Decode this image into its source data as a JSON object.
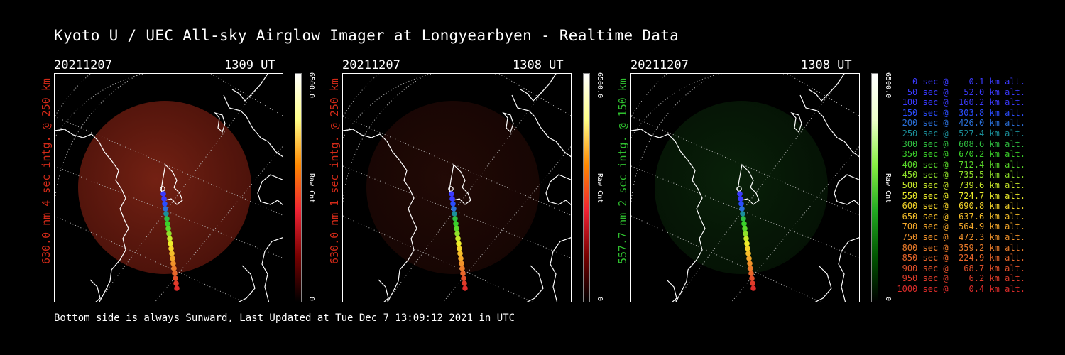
{
  "title": "Kyoto U / UEC All-sky Airglow Imager at Longyearbyen - Realtime Data",
  "footer": "Bottom side is always Sunward, Last Updated at Tue Dec  7 13:09:12 2021 in UTC",
  "colors": {
    "red_text": "#d32a18",
    "green_text": "#2fbf2f"
  },
  "panels": [
    {
      "date": "20211207",
      "time": "1309 UT",
      "label": "630.0 nm 4 sec intg. @ 250 km",
      "cb_max": "6500.0",
      "cb_unit": "Raw Cnt",
      "cb_min": "0",
      "color": "red",
      "intensity": 0.55
    },
    {
      "date": "20211207",
      "time": "1308 UT",
      "label": "630.0 nm 1 sec intg. @ 250 km",
      "cb_max": "6500.0",
      "cb_unit": "Raw Cnt",
      "cb_min": "0",
      "color": "red",
      "intensity": 0.16
    },
    {
      "date": "20211207",
      "time": "1308 UT",
      "label": "557.7 nm 2 sec intg. @ 150 km",
      "cb_max": "6500.0",
      "cb_unit": "Raw Cnt",
      "cb_min": "0",
      "color": "green",
      "intensity": 0.22
    }
  ],
  "legend": [
    {
      "text": "   0 sec @    0.1 km alt.",
      "color": "#3a3aff"
    },
    {
      "text": "  50 sec @   52.0 km alt.",
      "color": "#3a3aff"
    },
    {
      "text": " 100 sec @  160.2 km alt.",
      "color": "#3a3aff"
    },
    {
      "text": " 150 sec @  303.8 km alt.",
      "color": "#2a4dff"
    },
    {
      "text": " 200 sec @  426.0 km alt.",
      "color": "#2a6fd8"
    },
    {
      "text": " 250 sec @  527.4 km alt.",
      "color": "#1b8f9a"
    },
    {
      "text": " 300 sec @  608.6 km alt.",
      "color": "#2fbf40"
    },
    {
      "text": " 350 sec @  670.2 km alt.",
      "color": "#3ad02a"
    },
    {
      "text": " 400 sec @  712.4 km alt.",
      "color": "#5ad82a"
    },
    {
      "text": " 450 sec @  735.5 km alt.",
      "color": "#8ee02a"
    },
    {
      "text": " 500 sec @  739.6 km alt.",
      "color": "#c8e82a"
    },
    {
      "text": " 550 sec @  724.7 km alt.",
      "color": "#ecec2a"
    },
    {
      "text": " 600 sec @  690.8 km alt.",
      "color": "#f5d52a"
    },
    {
      "text": " 650 sec @  637.6 km alt.",
      "color": "#f5be2a"
    },
    {
      "text": " 700 sec @  564.9 km alt.",
      "color": "#f5a82a"
    },
    {
      "text": " 750 sec @  472.3 km alt.",
      "color": "#f0922a"
    },
    {
      "text": " 800 sec @  359.2 km alt.",
      "color": "#ec7c2a"
    },
    {
      "text": " 850 sec @  224.9 km alt.",
      "color": "#e8662a"
    },
    {
      "text": " 900 sec @   68.7 km alt.",
      "color": "#e4502a"
    },
    {
      "text": " 950 sec @    6.2 km alt.",
      "color": "#e03c2a"
    },
    {
      "text": "1000 sec @    0.4 km alt.",
      "color": "#dc2c2a"
    }
  ]
}
